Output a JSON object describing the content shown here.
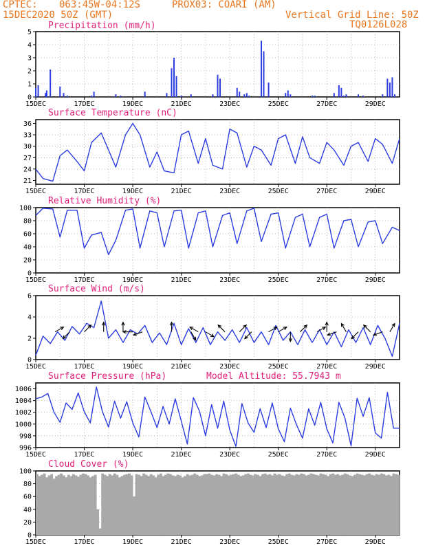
{
  "header": {
    "source": "CPTEC:",
    "location": "063:45W-04:12S",
    "station": "PROX03: COARI (AM)",
    "datetime": "15DEC2020 50Z (GMT)",
    "grid_note": "Vertical Grid Line: 50Z",
    "model_code": "TQ0126L028"
  },
  "colors": {
    "header": "#e8761e",
    "title": "#e0207a",
    "series": "#2b3ce0",
    "cloud": "#a9a9a9",
    "wind": "#000000"
  },
  "chart_data": [
    {
      "type": "bar",
      "title": "Precipitation (mm/h)",
      "ylim": [
        0,
        5
      ],
      "yticks": [
        0,
        1,
        2,
        3,
        4,
        5
      ],
      "xticks": [
        "15DEC",
        "17DEC",
        "19DEC",
        "21DEC",
        "23DEC",
        "25DEC",
        "27DEC",
        "29DEC"
      ],
      "x_day_offset": [
        0.0,
        0.1,
        0.4,
        0.45,
        0.6,
        1.0,
        1.15,
        1.3,
        2.3,
        2.4,
        3.3,
        3.5,
        4.5,
        5.4,
        5.6,
        5.7,
        5.8,
        6.0,
        6.4,
        7.3,
        7.5,
        7.6,
        8.3,
        8.4,
        8.6,
        8.7,
        8.8,
        9.3,
        9.4,
        9.6,
        10.3,
        10.4,
        10.5,
        11.4,
        11.5,
        12.3,
        12.5,
        12.6,
        12.7,
        12.8,
        13.3,
        13.5,
        14.3,
        14.5,
        14.6,
        14.7,
        14.8
      ],
      "values": [
        0.7,
        0.9,
        0.3,
        0.5,
        2.1,
        0.8,
        0.3,
        0.1,
        0.1,
        0.4,
        0.2,
        0.1,
        0.4,
        0.3,
        2.2,
        3.0,
        1.6,
        0.1,
        0.2,
        0.2,
        1.7,
        1.4,
        0.7,
        0.4,
        0.2,
        0.3,
        0.1,
        4.3,
        3.5,
        1.1,
        0.3,
        0.5,
        0.2,
        0.1,
        0.1,
        0.3,
        0.9,
        0.7,
        0.1,
        0.2,
        0.2,
        0.1,
        0.2,
        1.4,
        1.1,
        1.5,
        0.2
      ]
    },
    {
      "type": "line",
      "title": "Surface Temperature (nC)",
      "ylim": [
        20,
        37
      ],
      "yticks": [
        21,
        24,
        27,
        30,
        33,
        36
      ],
      "xticks": [
        "15DEC",
        "17DEC",
        "19DEC",
        "21DEC",
        "23DEC",
        "25DEC",
        "27DEC",
        "29DEC"
      ],
      "day_max": [
        29,
        33.5,
        36,
        28,
        34,
        32,
        34.5,
        31,
        33,
        32,
        29,
        28,
        31,
        29,
        28,
        30,
        28,
        30,
        30,
        31,
        31,
        31,
        32
      ],
      "day_min": [
        21,
        22,
        24,
        23,
        23,
        24,
        24,
        24,
        25,
        26,
        25,
        25,
        25,
        25,
        25,
        26,
        25,
        26,
        25,
        26,
        26,
        26,
        26
      ],
      "x": [
        0.0,
        0.3,
        0.7,
        1.0,
        1.3,
        1.7,
        2.0,
        2.3,
        2.7,
        3.0,
        3.3,
        3.7,
        4.0,
        4.3,
        4.7,
        5.0,
        5.3,
        5.7,
        6.0,
        6.3,
        6.7,
        7.0,
        7.3,
        7.7,
        8.0,
        8.3,
        8.7,
        9.0,
        9.3,
        9.7,
        10.0,
        10.3,
        10.7,
        11.0,
        11.3,
        11.7,
        12.0,
        12.3,
        12.7,
        13.0,
        13.3,
        13.7,
        14.0,
        14.3,
        14.7,
        15.0
      ],
      "values": [
        24,
        21.5,
        20.8,
        27.5,
        29,
        26,
        23.5,
        31,
        33.5,
        29,
        24.5,
        33,
        36,
        33,
        24.5,
        28.5,
        23.5,
        23,
        33,
        34,
        25.5,
        32,
        25,
        24,
        34.5,
        33.5,
        24.5,
        30,
        29,
        25,
        32,
        33,
        25.5,
        32.5,
        27,
        25.5,
        31,
        29,
        25,
        30,
        31,
        26,
        32,
        30.5,
        25.5,
        32
      ]
    },
    {
      "type": "line",
      "title": "Relative Humidity (%)",
      "ylim": [
        0,
        100
      ],
      "yticks": [
        0,
        20,
        40,
        60,
        80,
        100
      ],
      "xticks": [
        "15DEC",
        "17DEC",
        "19DEC",
        "21DEC",
        "23DEC",
        "25DEC",
        "27DEC",
        "29DEC"
      ],
      "x": [
        0.0,
        0.3,
        0.7,
        1.0,
        1.3,
        1.7,
        2.0,
        2.3,
        2.7,
        3.0,
        3.3,
        3.7,
        4.0,
        4.3,
        4.7,
        5.0,
        5.3,
        5.7,
        6.0,
        6.3,
        6.7,
        7.0,
        7.3,
        7.7,
        8.0,
        8.3,
        8.7,
        9.0,
        9.3,
        9.7,
        10.0,
        10.3,
        10.7,
        11.0,
        11.3,
        11.7,
        12.0,
        12.3,
        12.7,
        13.0,
        13.3,
        13.7,
        14.0,
        14.3,
        14.7,
        15.0
      ],
      "values": [
        88,
        99,
        98,
        55,
        96,
        96,
        38,
        58,
        62,
        28,
        50,
        96,
        98,
        38,
        95,
        92,
        40,
        95,
        96,
        38,
        92,
        95,
        40,
        88,
        92,
        45,
        95,
        99,
        48,
        90,
        92,
        38,
        85,
        90,
        40,
        85,
        90,
        38,
        80,
        82,
        40,
        78,
        80,
        45,
        70,
        65
      ]
    },
    {
      "type": "line",
      "title": "Surface Wind (m/s)",
      "ylim": [
        0,
        6
      ],
      "yticks": [
        0,
        2,
        4,
        6
      ],
      "xticks": [
        "15DEC",
        "17DEC",
        "19DEC",
        "21DEC",
        "23DEC",
        "25DEC",
        "27DEC",
        "29DEC"
      ],
      "x": [
        0.0,
        0.3,
        0.6,
        0.9,
        1.2,
        1.5,
        1.8,
        2.1,
        2.4,
        2.7,
        3.0,
        3.3,
        3.6,
        3.9,
        4.2,
        4.5,
        4.8,
        5.1,
        5.4,
        5.7,
        6.0,
        6.3,
        6.6,
        6.9,
        7.2,
        7.5,
        7.8,
        8.1,
        8.4,
        8.7,
        9.0,
        9.3,
        9.6,
        9.9,
        10.2,
        10.5,
        10.8,
        11.1,
        11.4,
        11.7,
        12.0,
        12.3,
        12.6,
        12.9,
        13.2,
        13.5,
        13.8,
        14.1,
        14.4,
        14.7,
        15.0
      ],
      "values": [
        0.4,
        2.2,
        1.5,
        2.6,
        1.8,
        3.1,
        2.4,
        3.4,
        3.0,
        5.5,
        2.0,
        2.8,
        1.6,
        2.8,
        2.4,
        3.2,
        1.6,
        2.5,
        1.4,
        3.4,
        1.4,
        2.9,
        1.6,
        3.0,
        1.4,
        2.6,
        1.8,
        2.8,
        1.6,
        3.0,
        1.6,
        2.6,
        1.4,
        3.2,
        1.8,
        2.6,
        1.4,
        2.8,
        1.6,
        2.8,
        1.4,
        2.6,
        1.2,
        2.8,
        1.6,
        3.0,
        1.4,
        3.2,
        2.0,
        0.3,
        3.4
      ],
      "arrow_x": [
        0.8,
        1.4,
        2.0,
        2.8,
        3.6,
        4.0,
        4.4,
        5.6,
        6.4,
        6.7,
        7.0,
        7.8,
        8.4,
        8.9,
        9.6,
        10.0,
        10.5,
        10.9,
        11.6,
        12.0,
        12.4,
        12.8,
        13.3,
        13.8,
        14.3,
        14.6
      ],
      "arrow_dir": [
        30,
        225,
        45,
        90,
        90,
        180,
        200,
        90,
        300,
        150,
        330,
        135,
        45,
        225,
        30,
        30,
        270,
        45,
        30,
        90,
        200,
        120,
        225,
        135,
        200,
        60
      ]
    },
    {
      "type": "line",
      "title": "Surface Pressure (hPa)",
      "annotation": "Model Altitude: 55.7943 m",
      "ylim": [
        996,
        1007
      ],
      "yticks": [
        996,
        998,
        1000,
        1002,
        1004,
        1006
      ],
      "xticks": [
        "15DEC",
        "17DEC",
        "19DEC",
        "21DEC",
        "23DEC",
        "25DEC",
        "27DEC",
        "29DEC"
      ],
      "x": [
        0.0,
        0.25,
        0.5,
        0.75,
        1.0,
        1.25,
        1.5,
        1.75,
        2.0,
        2.25,
        2.5,
        2.75,
        3.0,
        3.25,
        3.5,
        3.75,
        4.0,
        4.25,
        4.5,
        4.75,
        5.0,
        5.25,
        5.5,
        5.75,
        6.0,
        6.25,
        6.5,
        6.75,
        7.0,
        7.25,
        7.5,
        7.75,
        8.0,
        8.25,
        8.5,
        8.75,
        9.0,
        9.25,
        9.5,
        9.75,
        10.0,
        10.25,
        10.5,
        10.75,
        11.0,
        11.25,
        11.5,
        11.75,
        12.0,
        12.25,
        12.5,
        12.75,
        13.0,
        13.25,
        13.5,
        13.75,
        14.0,
        14.25,
        14.5,
        14.75,
        15.0
      ],
      "values": [
        1004.3,
        1004.6,
        1005.2,
        1002.0,
        1000.3,
        1003.6,
        1002.5,
        1005.3,
        1002.1,
        1000.2,
        1006.3,
        1002.1,
        999.5,
        1003.9,
        1001.0,
        1003.8,
        1000.2,
        997.8,
        1004.6,
        1002.1,
        999.4,
        1003.0,
        1000.0,
        1004.3,
        1000.5,
        996.6,
        1004.5,
        1002.2,
        998.0,
        1003.3,
        999.3,
        1003.9,
        999.0,
        996.2,
        1003.5,
        1000.2,
        998.6,
        1002.6,
        999.4,
        1003.6,
        999.2,
        997.0,
        1002.7,
        999.9,
        997.6,
        1002.6,
        999.8,
        1003.7,
        999.2,
        996.8,
        1003.7,
        1001.0,
        996.3,
        1004.4,
        1001.3,
        1004.5,
        998.5,
        997.6,
        1005.4,
        999.3,
        999.3
      ]
    },
    {
      "type": "bar",
      "title": "Cloud Cover (%)",
      "ylim": [
        0,
        100
      ],
      "yticks": [
        0,
        20,
        40,
        60,
        80,
        100
      ],
      "xticks": [
        "15DEC",
        "17DEC",
        "19DEC",
        "21DEC",
        "23DEC",
        "25DEC",
        "27DEC",
        "29DEC"
      ],
      "values": [
        95,
        92,
        94,
        96,
        90,
        93,
        95,
        88,
        92,
        94,
        96,
        93,
        90,
        94,
        92,
        95,
        93,
        91,
        94,
        96,
        95,
        93,
        90,
        92,
        94,
        40,
        10,
        96,
        94,
        92,
        95,
        93,
        96,
        94,
        90,
        92,
        94,
        95,
        96,
        93,
        60,
        95,
        94,
        92,
        96,
        94,
        92,
        95,
        93,
        90,
        94,
        96,
        92,
        94,
        96,
        95,
        93,
        92,
        94,
        93,
        90,
        92,
        95,
        93,
        94,
        96,
        94,
        92,
        93,
        95,
        95,
        96,
        94,
        93,
        95,
        94,
        92,
        96,
        95,
        93,
        94,
        95,
        96,
        94,
        92,
        93,
        95,
        96,
        94,
        93,
        95,
        94,
        92,
        95,
        96,
        94,
        95,
        93,
        96,
        94,
        95,
        93,
        92,
        95,
        96,
        94,
        93,
        95,
        94,
        96,
        95,
        93,
        94,
        96,
        95,
        94,
        93,
        96,
        95,
        94,
        92,
        95,
        96,
        94,
        95,
        93,
        94,
        96,
        95,
        93,
        92,
        94,
        96,
        95,
        94,
        93,
        95,
        96,
        94,
        93,
        95,
        94,
        96,
        95,
        93,
        94,
        92,
        96,
        95,
        94
      ]
    }
  ]
}
